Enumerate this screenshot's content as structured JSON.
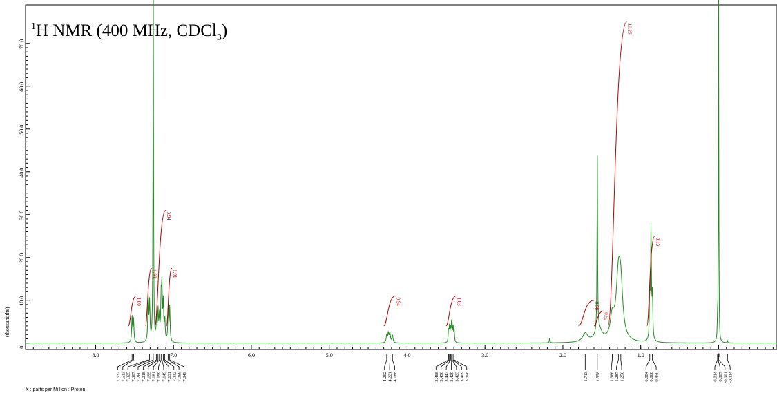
{
  "chart_data": {
    "type": "line",
    "title": {
      "sup": "1",
      "pre": "H NMR (400 MHz, CDCl",
      "sub": "3",
      "post": ")"
    },
    "xlabel": "X : parts per Million : Proton",
    "ylabel": "(thousandths)",
    "xlim": [
      8.9,
      -0.75
    ],
    "ylim": [
      -1.5,
      79
    ],
    "x_ticks": [
      "8.0",
      "7.0",
      "6.0",
      "5.0",
      "4.0",
      "3.0",
      "2.0",
      "1.0",
      "0"
    ],
    "y_ticks": [
      "0",
      "10.0",
      "20.0",
      "30.0",
      "40.0",
      "50.0",
      "60.0",
      "70.0"
    ],
    "grid": false,
    "line_color": "#1f8a1f",
    "integral_color": "#b00000",
    "peaks": [
      {
        "ppm": 7.532,
        "h": 6.0,
        "w": 0.006
      },
      {
        "ppm": 7.513,
        "h": 5.5,
        "w": 0.006
      },
      {
        "ppm": 7.325,
        "h": 10.5,
        "w": 0.006
      },
      {
        "ppm": 7.307,
        "h": 9.0,
        "w": 0.006
      },
      {
        "ppm": 7.26,
        "h": 83.0,
        "w": 0.004
      },
      {
        "ppm": 7.218,
        "h": 5.0,
        "w": 0.006
      },
      {
        "ppm": 7.199,
        "h": 7.0,
        "w": 0.006
      },
      {
        "ppm": 7.181,
        "h": 5.5,
        "w": 0.006
      },
      {
        "ppm": 7.159,
        "h": 9.0,
        "w": 0.006
      },
      {
        "ppm": 7.149,
        "h": 11.5,
        "w": 0.006
      },
      {
        "ppm": 7.131,
        "h": 9.0,
        "w": 0.006
      },
      {
        "ppm": 7.112,
        "h": 5.0,
        "w": 0.006
      },
      {
        "ppm": 7.068,
        "h": 8.5,
        "w": 0.006
      },
      {
        "ppm": 7.049,
        "h": 8.0,
        "w": 0.006
      },
      {
        "ppm": 4.262,
        "h": 1.8,
        "w": 0.008
      },
      {
        "ppm": 4.241,
        "h": 2.2,
        "w": 0.008
      },
      {
        "ppm": 4.221,
        "h": 2.2,
        "w": 0.008
      },
      {
        "ppm": 4.188,
        "h": 1.8,
        "w": 0.008
      },
      {
        "ppm": 3.468,
        "h": 3.0,
        "w": 0.005
      },
      {
        "ppm": 3.456,
        "h": 3.5,
        "w": 0.005
      },
      {
        "ppm": 3.442,
        "h": 3.2,
        "w": 0.005
      },
      {
        "ppm": 3.429,
        "h": 3.5,
        "w": 0.005
      },
      {
        "ppm": 3.423,
        "h": 3.0,
        "w": 0.005
      },
      {
        "ppm": 3.409,
        "h": 3.3,
        "w": 0.005
      },
      {
        "ppm": 3.396,
        "h": 2.6,
        "w": 0.005
      },
      {
        "ppm": 2.17,
        "h": 1.2,
        "w": 0.004
      },
      {
        "ppm": 1.713,
        "h": 2.0,
        "w": 0.04
      },
      {
        "ppm": 1.558,
        "h": 42.0,
        "w": 0.004
      },
      {
        "ppm": 1.54,
        "h": 3.0,
        "w": 0.05
      },
      {
        "ppm": 1.366,
        "h": 5.0,
        "w": 0.03
      },
      {
        "ppm": 1.287,
        "h": 14.0,
        "w": 0.035
      },
      {
        "ppm": 1.256,
        "h": 10.0,
        "w": 0.03
      },
      {
        "ppm": 0.884,
        "h": 9.0,
        "w": 0.006
      },
      {
        "ppm": 0.868,
        "h": 26.0,
        "w": 0.006
      },
      {
        "ppm": 0.85,
        "h": 10.0,
        "w": 0.006
      },
      {
        "ppm": 0.014,
        "h": 4.5,
        "w": 0.004
      },
      {
        "ppm": 0.0,
        "h": 83.0,
        "w": 0.003
      },
      {
        "ppm": -0.114,
        "h": 0.5,
        "w": 0.004
      }
    ],
    "peak_label_groups": [
      {
        "labels": [
          "7.532",
          "7.513",
          "7.325",
          "7.307",
          "7.260",
          "7.218",
          "7.199",
          "7.181",
          "7.159",
          "7.149",
          "7.131",
          "7.112",
          "7.068",
          "7.049"
        ]
      },
      {
        "labels": [
          "4.262",
          "4.221",
          "4.188"
        ]
      },
      {
        "labels": [
          "3.468",
          "3.456",
          "3.442",
          "3.429",
          "3.423",
          "3.409",
          "3.396"
        ]
      },
      {
        "labels": [
          "1.713"
        ]
      },
      {
        "labels": [
          "1.558"
        ]
      },
      {
        "labels": [
          "1.366",
          "1.287",
          "1.256"
        ]
      },
      {
        "labels": [
          "0.884",
          "0.868",
          "0.850"
        ]
      },
      {
        "labels": [
          "0.014",
          "0.007",
          "-0.001",
          "-0.114"
        ]
      }
    ],
    "peak_label_ppms": [
      [
        7.532,
        7.513,
        7.325,
        7.307,
        7.26,
        7.218,
        7.199,
        7.181,
        7.159,
        7.149,
        7.131,
        7.112,
        7.068,
        7.049
      ],
      [
        4.262,
        4.221,
        4.188
      ],
      [
        3.468,
        3.456,
        3.442,
        3.429,
        3.423,
        3.409,
        3.396
      ],
      [
        1.713
      ],
      [
        1.558
      ],
      [
        1.366,
        1.287,
        1.256
      ],
      [
        0.884,
        0.868,
        0.85
      ],
      [
        0.014,
        0.007,
        -0.001,
        -0.114
      ]
    ],
    "integrals": [
      {
        "value": "1.00",
        "start": 7.58,
        "end": 7.48,
        "y0": 4.0,
        "y1": 11.0
      },
      {
        "value": "1.98",
        "start": 7.36,
        "end": 7.28,
        "y0": 4.0,
        "y1": 17.5
      },
      {
        "value": "3.94",
        "start": 7.24,
        "end": 7.1,
        "y0": 4.0,
        "y1": 31.0
      },
      {
        "value": "1.91",
        "start": 7.09,
        "end": 7.02,
        "y0": 4.0,
        "y1": 17.5
      },
      {
        "value": "0.94",
        "start": 4.3,
        "end": 4.15,
        "y0": 4.0,
        "y1": 11.0
      },
      {
        "value": "1.03",
        "start": 3.5,
        "end": 3.37,
        "y0": 4.0,
        "y1": 11.0
      },
      {
        "value": "0.98",
        "start": 1.8,
        "end": 1.6,
        "y0": 4.0,
        "y1": 10.0
      },
      {
        "value": "0.52",
        "start": 1.6,
        "end": 1.48,
        "y0": 4.0,
        "y1": 7.5
      },
      {
        "value": "10.26",
        "start": 1.42,
        "end": 1.18,
        "y0": 4.0,
        "y1": 75.0
      },
      {
        "value": "3.13",
        "start": 0.92,
        "end": 0.82,
        "y0": 4.0,
        "y1": 25.0
      }
    ]
  }
}
